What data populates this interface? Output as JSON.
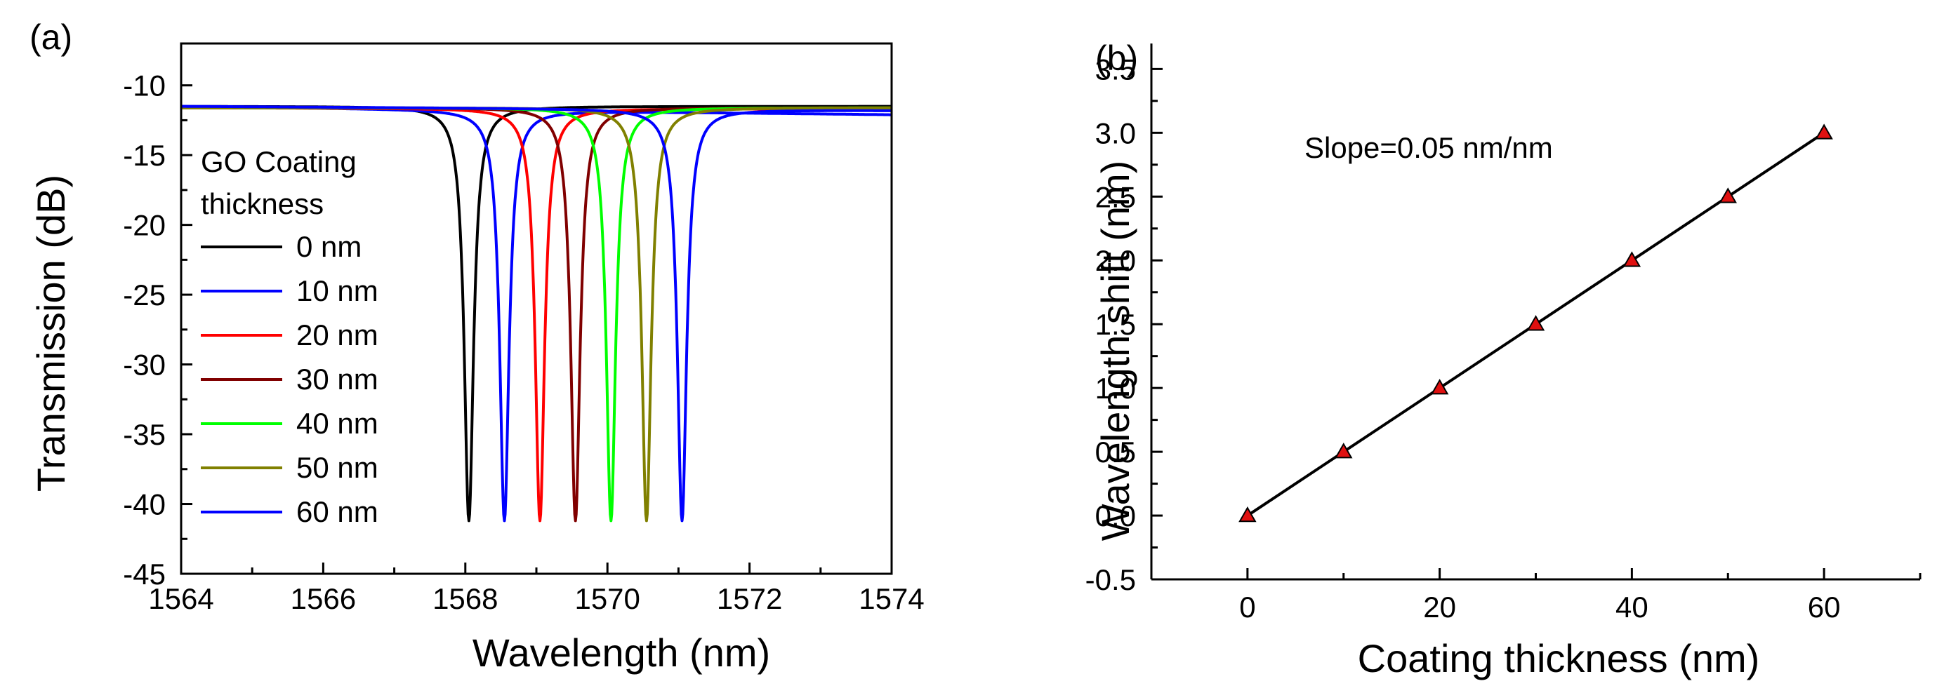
{
  "chart_data": [
    {
      "type": "line",
      "panel_label": "(a)",
      "xlabel": "Wavelength (nm)",
      "ylabel": "Transmission (dB)",
      "xlim": [
        1564,
        1574
      ],
      "ylim": [
        -45,
        -7
      ],
      "x_ticks": [
        1564,
        1566,
        1568,
        1570,
        1572,
        1574
      ],
      "y_ticks": [
        -10,
        -15,
        -20,
        -25,
        -30,
        -35,
        -40,
        -45
      ],
      "legend": {
        "title_lines": [
          "GO Coating",
          "thickness"
        ],
        "placement": "left"
      },
      "series": [
        {
          "name": "0 nm",
          "color": "#000000",
          "dip_center": 1568.05,
          "min_dB": -41.2,
          "baseline_left": -11.5,
          "baseline_right": -11.5,
          "linewidth_nm": 0.55
        },
        {
          "name": "10 nm",
          "color": "#0000ff",
          "dip_center": 1568.55,
          "min_dB": -41.2,
          "baseline_left": -11.5,
          "baseline_right": -12.1,
          "linewidth_nm": 0.55
        },
        {
          "name": "20 nm",
          "color": "#ff0000",
          "dip_center": 1569.05,
          "min_dB": -41.2,
          "baseline_left": -11.6,
          "baseline_right": -11.7,
          "linewidth_nm": 0.55
        },
        {
          "name": "30 nm",
          "color": "#800000",
          "dip_center": 1569.55,
          "min_dB": -41.2,
          "baseline_left": -11.6,
          "baseline_right": -11.6,
          "linewidth_nm": 0.55
        },
        {
          "name": "40 nm",
          "color": "#00ff00",
          "dip_center": 1570.05,
          "min_dB": -41.2,
          "baseline_left": -11.6,
          "baseline_right": -11.6,
          "linewidth_nm": 0.55
        },
        {
          "name": "50 nm",
          "color": "#808000",
          "dip_center": 1570.55,
          "min_dB": -41.2,
          "baseline_left": -11.6,
          "baseline_right": -11.6,
          "linewidth_nm": 0.55
        },
        {
          "name": "60 nm",
          "color": "#0000ff",
          "dip_center": 1571.05,
          "min_dB": -41.2,
          "baseline_left": -11.5,
          "baseline_right": -11.8,
          "linewidth_nm": 0.55
        }
      ]
    },
    {
      "type": "scatter",
      "panel_label": "(b)",
      "xlabel": "Coating thickness (nm)",
      "ylabel": "Wavelength shift (nm)",
      "xlim": [
        -10,
        70
      ],
      "ylim": [
        -0.5,
        3.7
      ],
      "x_ticks": [
        0,
        20,
        40,
        60
      ],
      "y_ticks": [
        -0.5,
        0.0,
        0.5,
        1.0,
        1.5,
        2.0,
        2.5,
        3.0,
        3.5
      ],
      "annotation": "Slope=0.05 nm/nm",
      "marker": "triangle",
      "marker_color": "#e01010",
      "fit_line_color": "#000000",
      "x": [
        0,
        10,
        20,
        30,
        40,
        50,
        60
      ],
      "y": [
        0.0,
        0.5,
        1.0,
        1.5,
        2.0,
        2.5,
        3.0
      ]
    }
  ]
}
